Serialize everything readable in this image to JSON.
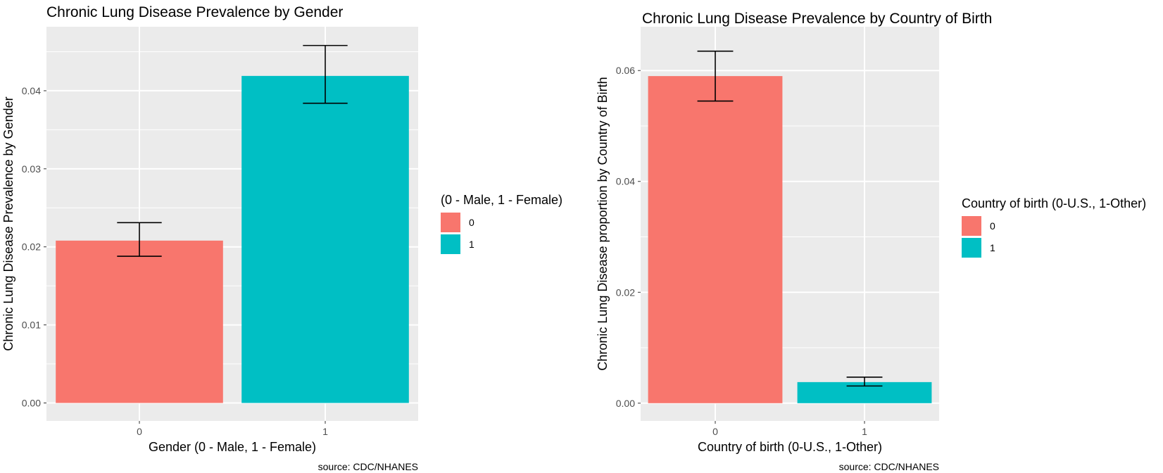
{
  "chart_data": [
    {
      "type": "bar",
      "title": "Chronic Lung Disease Prevalence by Gender",
      "xlabel": "Gender (0 - Male, 1 - Female)",
      "ylabel": "Chronic Lung Disease Prevalence by Gender",
      "categories": [
        "0",
        "1"
      ],
      "values": [
        0.0208,
        0.0419
      ],
      "error_low": [
        0.0188,
        0.0384
      ],
      "error_high": [
        0.0231,
        0.0458
      ],
      "ylim": [
        -0.0023,
        0.0482
      ],
      "yticks": [
        0.0,
        0.01,
        0.02,
        0.03,
        0.04
      ],
      "ytick_labels": [
        "0.00",
        "0.01",
        "0.02",
        "0.03",
        "0.04"
      ],
      "colors": [
        "#F8766D",
        "#00BFC4"
      ],
      "legend": {
        "title": "(0 - Male, 1 - Female)",
        "entries": [
          "0",
          "1"
        ],
        "placement": "right"
      },
      "caption": "source: CDC/NHANES",
      "grid": true
    },
    {
      "type": "bar",
      "title": "Chronic Lung Disease Prevalence by Country of Birth",
      "xlabel": "Country of birth (0-U.S., 1-Other)",
      "ylabel": "Chronic Lung Disease proportion by Country of Birth",
      "categories": [
        "0",
        "1"
      ],
      "values": [
        0.059,
        0.0038
      ],
      "error_low": [
        0.0545,
        0.0031
      ],
      "error_high": [
        0.0635,
        0.0047
      ],
      "ylim": [
        -0.0032,
        0.0679
      ],
      "yticks": [
        0.0,
        0.02,
        0.04,
        0.06
      ],
      "ytick_labels": [
        "0.00",
        "0.02",
        "0.04",
        "0.06"
      ],
      "colors": [
        "#F8766D",
        "#00BFC4"
      ],
      "legend": {
        "title": "Country of birth (0-U.S., 1-Other)",
        "entries": [
          "0",
          "1"
        ],
        "placement": "right"
      },
      "caption": "source: CDC/NHANES",
      "grid": true
    }
  ]
}
